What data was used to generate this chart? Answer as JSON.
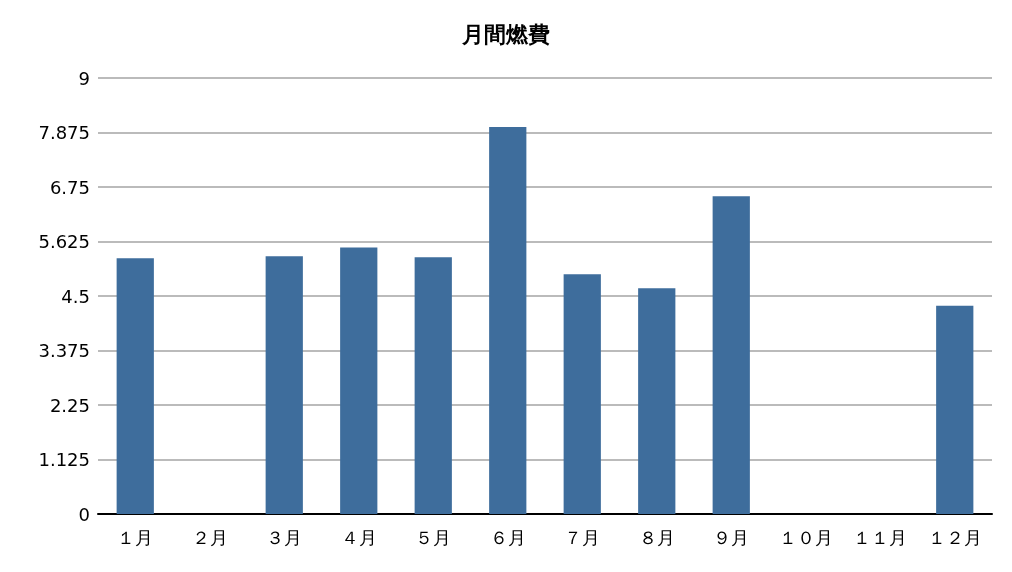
{
  "chart_data": {
    "type": "bar",
    "title": "月間燃費",
    "categories": [
      "１月",
      "２月",
      "３月",
      "４月",
      "５月",
      "６月",
      "７月",
      "８月",
      "９月",
      "１０月",
      "１１月",
      "１２月"
    ],
    "series": [
      {
        "color": "#3e6d9c",
        "values": [
          5.28,
          null,
          5.32,
          5.5,
          5.3,
          7.99,
          4.95,
          4.66,
          6.56,
          null,
          null,
          4.3
        ]
      }
    ],
    "ylim": [
      0,
      9
    ],
    "yticks": [
      0,
      1.125,
      2.25,
      3.375,
      4.5,
      5.625,
      6.75,
      7.875,
      9
    ],
    "grid": "y"
  }
}
